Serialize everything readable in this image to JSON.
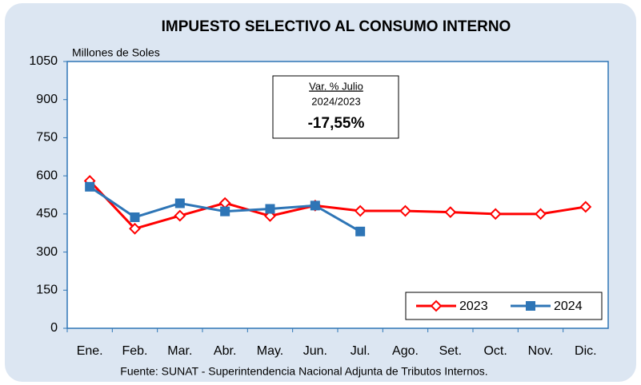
{
  "chart_data": {
    "type": "line",
    "title": "IMPUESTO SELECTIVO AL CONSUMO INTERNO",
    "y_label": "Millones de Soles",
    "source": "Fuente: SUNAT - Superintendencia Nacional Adjunta de Tributos Internos.",
    "annotation": {
      "title": "Var. % Julio",
      "subtitle": "2024/2023",
      "text": "-17,55%"
    },
    "categories": [
      "Ene.",
      "Feb.",
      "Mar.",
      "Abr.",
      "May.",
      "Jun.",
      "Jul.",
      "Ago.",
      "Set.",
      "Oct.",
      "Nov.",
      "Dic."
    ],
    "series": [
      {
        "name": "2023",
        "color": "#ff0000",
        "marker": "diamond",
        "values": [
          580,
          392,
          443,
          493,
          442,
          483,
          462,
          462,
          457,
          450,
          450,
          478
        ]
      },
      {
        "name": "2024",
        "color": "#2e75b6",
        "marker": "square",
        "values": [
          557,
          437,
          492,
          460,
          470,
          483,
          381,
          null,
          null,
          null,
          null,
          null
        ]
      }
    ],
    "ylim": [
      0,
      1050
    ],
    "yticks": [
      0,
      150,
      300,
      450,
      600,
      750,
      900,
      1050
    ],
    "legend": "lower right",
    "grid": false
  }
}
